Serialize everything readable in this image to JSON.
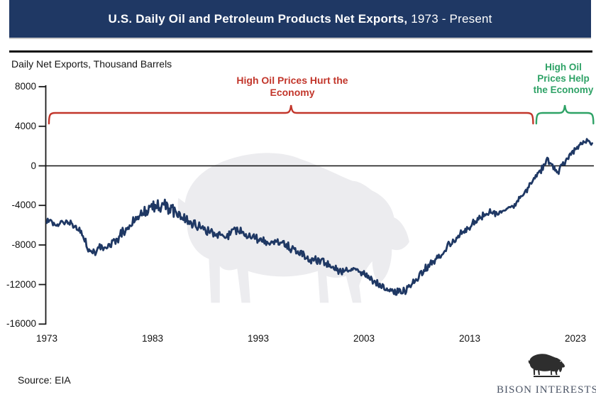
{
  "banner": {
    "title_main": "U.S. Daily Oil and Petroleum Products Net Exports,",
    "title_range": " 1973 - Present"
  },
  "chart": {
    "units_label": "Daily Net Exports, Thousand Barrels"
  },
  "chart_data": {
    "type": "line",
    "title": "U.S. Daily Oil and Petroleum Products Net Exports, 1973 - Present",
    "ylabel": "Daily Net Exports, Thousand Barrels",
    "xlabel": "",
    "xlim": [
      1973,
      2024.7
    ],
    "ylim": [
      -16000,
      8000
    ],
    "grid": false,
    "legend": "none",
    "x_tick_years": [
      1973,
      1983,
      1993,
      2003,
      2013,
      2023
    ],
    "y_tick_values": [
      8000,
      4000,
      0,
      -4000,
      -8000,
      -12000,
      -16000
    ],
    "series": [
      {
        "name": "U.S. daily oil and petroleum products net exports (thousand barrels)",
        "color": "#1F3864",
        "sampling": "monthly (yearly anchors below, monthly variation band)",
        "points_yearly": [
          [
            1973,
            -5500
          ],
          [
            1974,
            -6000
          ],
          [
            1975,
            -5700
          ],
          [
            1976,
            -6300
          ],
          [
            1977,
            -8500
          ],
          [
            1977.5,
            -8800
          ],
          [
            1978,
            -8200
          ],
          [
            1979,
            -8200
          ],
          [
            1980,
            -7000
          ],
          [
            1981,
            -5800
          ],
          [
            1982,
            -4800
          ],
          [
            1983,
            -4200
          ],
          [
            1984,
            -4000
          ],
          [
            1985,
            -4500
          ],
          [
            1986,
            -5300
          ],
          [
            1987,
            -5900
          ],
          [
            1988,
            -6400
          ],
          [
            1989,
            -6900
          ],
          [
            1990,
            -7100
          ],
          [
            1991,
            -6500
          ],
          [
            1992,
            -6900
          ],
          [
            1993,
            -7400
          ],
          [
            1994,
            -7900
          ],
          [
            1995,
            -7700
          ],
          [
            1996,
            -8300
          ],
          [
            1997,
            -8900
          ],
          [
            1998,
            -9500
          ],
          [
            1999,
            -9600
          ],
          [
            2000,
            -10200
          ],
          [
            2001,
            -10700
          ],
          [
            2002,
            -10300
          ],
          [
            2003,
            -11000
          ],
          [
            2004,
            -11800
          ],
          [
            2005,
            -12400
          ],
          [
            2006,
            -12700
          ],
          [
            2006.5,
            -12900
          ],
          [
            2007,
            -12600
          ],
          [
            2008,
            -11500
          ],
          [
            2009,
            -10200
          ],
          [
            2010,
            -9400
          ],
          [
            2011,
            -8000
          ],
          [
            2012,
            -7100
          ],
          [
            2013,
            -6300
          ],
          [
            2014,
            -5200
          ],
          [
            2015,
            -4600
          ],
          [
            2016,
            -4800
          ],
          [
            2017,
            -4000
          ],
          [
            2018,
            -3000
          ],
          [
            2019,
            -1400
          ],
          [
            2019.8,
            -300
          ],
          [
            2020.4,
            500
          ],
          [
            2021,
            -300
          ],
          [
            2021.4,
            -800
          ],
          [
            2022,
            600
          ],
          [
            2022.7,
            1400
          ],
          [
            2023.5,
            2300
          ],
          [
            2024,
            2600
          ],
          [
            2024.5,
            2200
          ]
        ],
        "noise_band_by_year": [
          [
            1973,
            330
          ],
          [
            1977,
            520
          ],
          [
            1980,
            700
          ],
          [
            1984,
            800
          ],
          [
            1988,
            600
          ],
          [
            1993,
            520
          ],
          [
            1998,
            480
          ],
          [
            2004,
            460
          ],
          [
            2008,
            520
          ],
          [
            2013,
            520
          ],
          [
            2018,
            480
          ],
          [
            2021,
            520
          ],
          [
            2024.7,
            430
          ]
        ]
      }
    ],
    "annotations": [
      {
        "id": "hurt",
        "text": "High Oil Prices Hurt the Economy",
        "lines": [
          "High Oil Prices Hurt the",
          "Economy"
        ],
        "color": "#C2362B",
        "span_years": [
          1973.2,
          2019.0
        ]
      },
      {
        "id": "help",
        "text": "High Oil Prices Help the Economy",
        "lines": [
          "High Oil",
          "Prices Help",
          "the Economy"
        ],
        "color": "#2EA266",
        "span_years": [
          2019.3,
          2024.7
        ]
      }
    ]
  },
  "footer": {
    "source": "Source: EIA",
    "logo_text": "BISON INTERESTS"
  },
  "colors": {
    "banner_bg": "#1F3864",
    "line": "#1F3864",
    "axis": "#1a1a1a",
    "watermark": "#ECECEF",
    "hurt_red": "#C2362B",
    "help_green": "#2EA266"
  }
}
